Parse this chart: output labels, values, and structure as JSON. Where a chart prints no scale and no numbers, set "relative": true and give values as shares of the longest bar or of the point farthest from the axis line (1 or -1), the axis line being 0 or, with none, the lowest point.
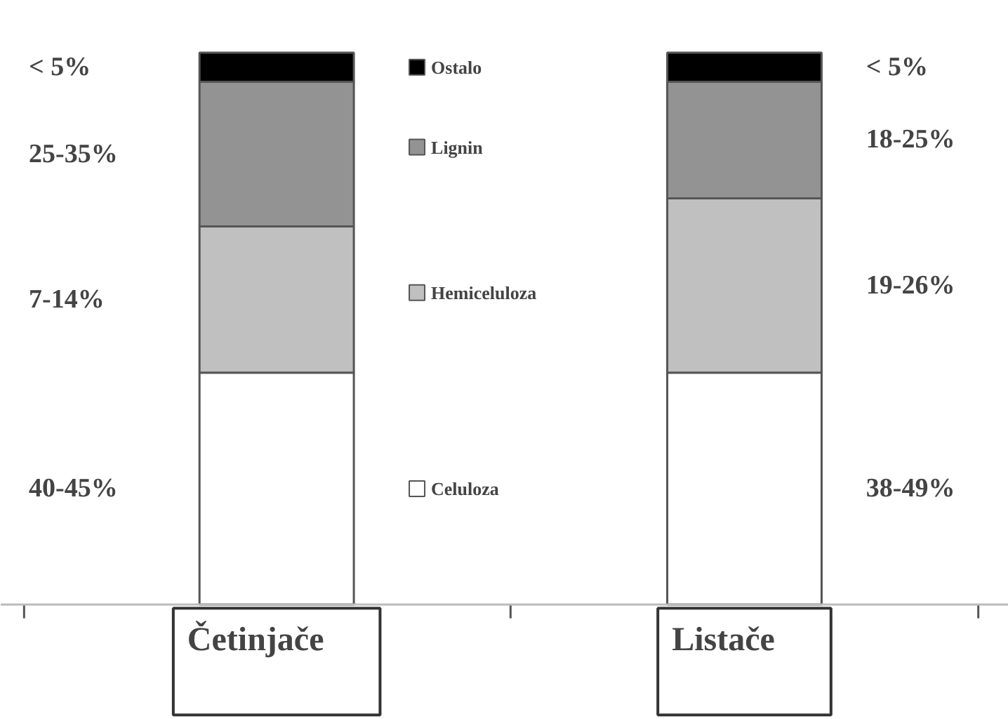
{
  "chart_data": {
    "type": "bar",
    "stacked": true,
    "relative": true,
    "legend": "center",
    "categories": [
      "Četinjače",
      "Listače"
    ],
    "series": [
      {
        "name": "Celuloza",
        "color": "#ffffff",
        "values": [
          0.42,
          0.42
        ]
      },
      {
        "name": "Hemiceluloza",
        "color": "#c0c0c0",
        "values": [
          0.265,
          0.316
        ]
      },
      {
        "name": "Lignin",
        "color": "#939393",
        "values": [
          0.262,
          0.211
        ]
      },
      {
        "name": "Ostalo",
        "color": "#000000",
        "values": [
          0.053,
          0.053
        ]
      }
    ],
    "annotations": [
      "40-45%",
      "7-14%",
      "25-35%",
      "< 5%",
      "38-49%",
      "19-26%",
      "18-25%",
      "< 5%"
    ]
  }
}
